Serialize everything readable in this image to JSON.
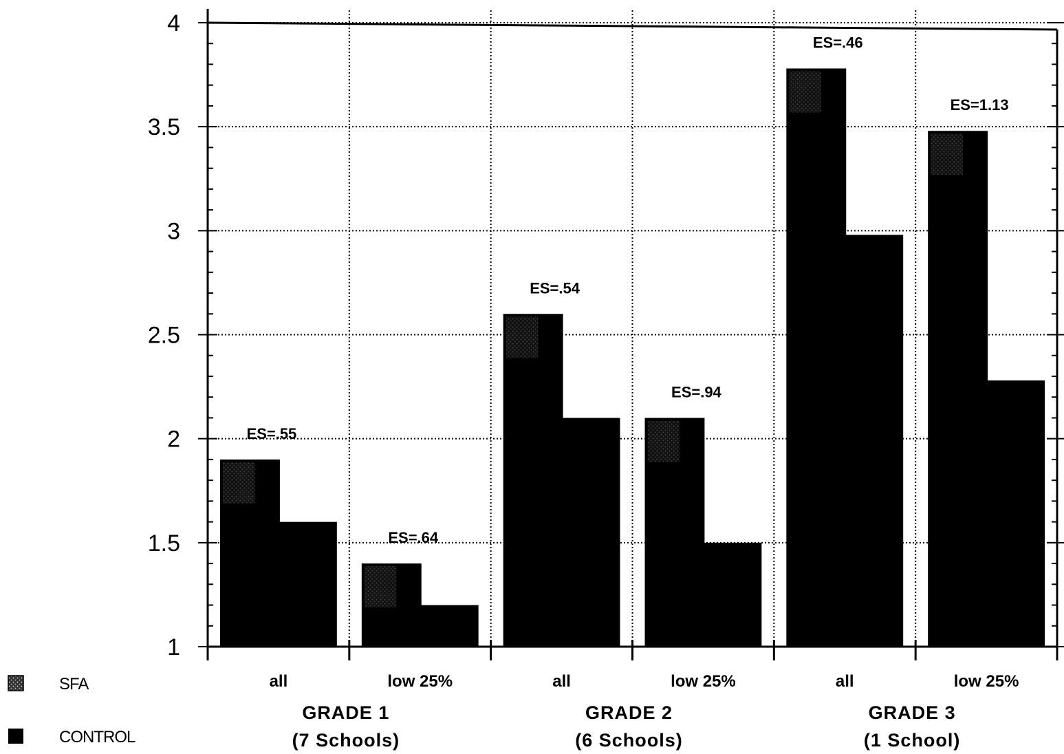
{
  "chart_data": {
    "type": "bar",
    "ylim": [
      1,
      4
    ],
    "yticks": [
      "1",
      "1.5",
      "2",
      "2.5",
      "3",
      "3.5",
      "4"
    ],
    "grid": true,
    "legend_position": "bottom-left",
    "categories": [
      "all",
      "low 25%",
      "all",
      "low 25%",
      "all",
      "low 25%"
    ],
    "groups": [
      {
        "line1": "GRADE 1",
        "line2": "(7  Schools)"
      },
      {
        "line1": "GRADE 2",
        "line2": "(6  Schools)"
      },
      {
        "line1": "GRADE 3",
        "line2": "(1  School)"
      }
    ],
    "series": [
      {
        "name": "SFA",
        "values": [
          1.9,
          1.4,
          2.6,
          2.1,
          3.78,
          3.48
        ],
        "color": "#000000"
      },
      {
        "name": "CONTROL",
        "values": [
          1.6,
          1.2,
          2.1,
          1.5,
          2.98,
          2.28
        ],
        "color": "#000000"
      }
    ],
    "effect_sizes": [
      "ES=.55",
      "ES=.64",
      "ES=.54",
      "ES=.94",
      "ES=.46",
      "ES=1.13"
    ],
    "legend": [
      {
        "label": "SFA",
        "icon": "dotted-square-icon"
      },
      {
        "label": "CONTROL",
        "icon": "solid-square-icon"
      }
    ]
  }
}
